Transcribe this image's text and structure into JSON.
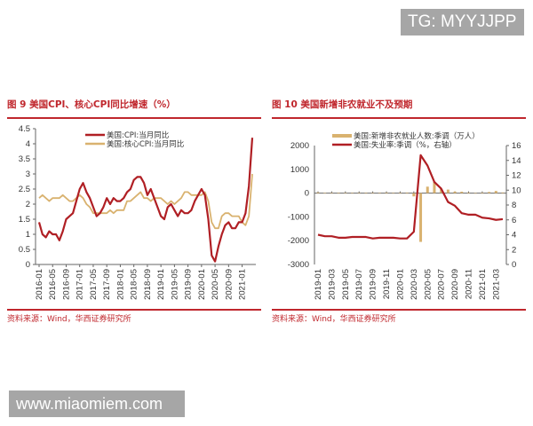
{
  "watermarks": {
    "top": "TG: MYYJJPP",
    "bottom": "www.miaomiem.com"
  },
  "colors": {
    "red": "#b01f24",
    "gold": "#d9b26f",
    "title": "#c0272d"
  },
  "chart_data": [
    {
      "type": "line",
      "title": "图 9  美国CPI、核心CPI同比增速（%）",
      "source": "资料来源：Wind，华西证券研究所",
      "x_start": "2016-01",
      "x_end": "2021-04",
      "xticks": [
        "2016-01",
        "2016-05",
        "2016-09",
        "2017-01",
        "2017-05",
        "2017-09",
        "2018-01",
        "2018-05",
        "2018-09",
        "2019-01",
        "2019-05",
        "2019-09",
        "2020-01",
        "2020-05",
        "2020-09",
        "2021-01"
      ],
      "yticks": [
        "0",
        "0.5",
        "1",
        "1.5",
        "2",
        "2.5",
        "3",
        "3.5",
        "4",
        "4.5"
      ],
      "ylim": [
        0,
        4.5
      ],
      "legend": "top-center",
      "grid": false,
      "series": [
        {
          "name": "美国:CPI:当月同比",
          "color": "#b01f24",
          "values": [
            1.4,
            1.0,
            0.9,
            1.1,
            1.0,
            1.0,
            0.8,
            1.1,
            1.5,
            1.6,
            1.7,
            2.1,
            2.5,
            2.7,
            2.4,
            2.2,
            1.9,
            1.6,
            1.7,
            1.9,
            2.2,
            2.0,
            2.2,
            2.1,
            2.1,
            2.2,
            2.4,
            2.5,
            2.8,
            2.9,
            2.9,
            2.7,
            2.3,
            2.5,
            2.2,
            1.9,
            1.6,
            1.5,
            1.9,
            2.0,
            1.8,
            1.6,
            1.8,
            1.7,
            1.7,
            1.8,
            2.1,
            2.3,
            2.5,
            2.3,
            1.5,
            0.3,
            0.1,
            0.6,
            1.0,
            1.3,
            1.4,
            1.2,
            1.2,
            1.4,
            1.4,
            1.7,
            2.6,
            4.2
          ]
        },
        {
          "name": "美国:核心CPI:当月同比",
          "color": "#d9b26f",
          "values": [
            2.2,
            2.3,
            2.2,
            2.1,
            2.2,
            2.2,
            2.2,
            2.3,
            2.2,
            2.1,
            2.1,
            2.2,
            2.3,
            2.2,
            2.0,
            1.9,
            1.7,
            1.7,
            1.7,
            1.7,
            1.7,
            1.8,
            1.7,
            1.8,
            1.8,
            1.8,
            2.1,
            2.1,
            2.2,
            2.3,
            2.4,
            2.2,
            2.2,
            2.1,
            2.2,
            2.2,
            2.2,
            2.1,
            2.0,
            2.1,
            2.0,
            2.1,
            2.2,
            2.4,
            2.4,
            2.3,
            2.3,
            2.3,
            2.3,
            2.4,
            2.1,
            1.4,
            1.2,
            1.2,
            1.6,
            1.7,
            1.7,
            1.6,
            1.6,
            1.6,
            1.4,
            1.3,
            1.6,
            3.0
          ]
        }
      ]
    },
    {
      "type": "bar+line",
      "title": "图 10  美国新增非农就业不及预期",
      "source": "资料来源：Wind，华西证券研究所",
      "x_start": "2019-01",
      "x_end": "2021-04",
      "xticks": [
        "2019-01",
        "2019-03",
        "2019-05",
        "2019-07",
        "2019-09",
        "2019-11",
        "2020-01",
        "2020-03",
        "2020-05",
        "2020-07",
        "2020-09",
        "2020-11",
        "2021-01",
        "2021-03"
      ],
      "yticks_left": [
        "-3000",
        "-2000",
        "-1000",
        "0",
        "1000",
        "2000"
      ],
      "ylim_left": [
        -3000,
        2000
      ],
      "yticks_right": [
        "0",
        "2",
        "4",
        "6",
        "8",
        "10",
        "12",
        "14",
        "16"
      ],
      "ylim_right": [
        0,
        16
      ],
      "legend": "top-center",
      "series": [
        {
          "name": "美国:新增非农就业人数:季调（万人）",
          "type": "bar",
          "axis": "left",
          "color": "#d9b26f",
          "values": [
            31,
            6,
            19,
            22,
            9,
            18,
            17,
            21,
            18,
            19,
            26,
            18,
            21,
            25,
            -137,
            -2050,
            272,
            478,
            176,
            149,
            66,
            61,
            26,
            -14,
            23,
            47,
            92,
            27
          ]
        },
        {
          "name": "美国:失业率:季调（%，右轴）",
          "type": "line",
          "axis": "right",
          "color": "#b01f24",
          "values": [
            4.0,
            3.8,
            3.8,
            3.6,
            3.6,
            3.7,
            3.7,
            3.7,
            3.5,
            3.6,
            3.6,
            3.6,
            3.5,
            3.5,
            4.4,
            14.7,
            13.3,
            11.1,
            10.2,
            8.4,
            7.9,
            6.9,
            6.7,
            6.7,
            6.3,
            6.2,
            6.0,
            6.1
          ]
        }
      ]
    }
  ]
}
